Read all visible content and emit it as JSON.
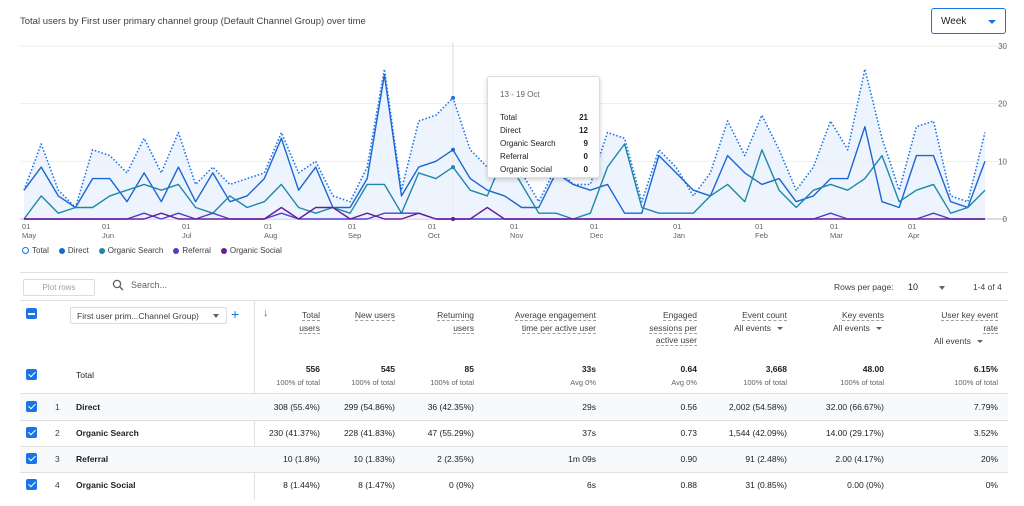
{
  "chart": {
    "title": "Total users by First user primary channel group (Default Channel Group) over time",
    "period_select": "Week"
  },
  "chart_data": {
    "type": "line",
    "x_tick_labels": [
      {
        "day": "01",
        "month": "May"
      },
      {
        "day": "01",
        "month": "Jun"
      },
      {
        "day": "01",
        "month": "Jul"
      },
      {
        "day": "01",
        "month": "Aug"
      },
      {
        "day": "01",
        "month": "Sep"
      },
      {
        "day": "01",
        "month": "Oct"
      },
      {
        "day": "01",
        "month": "Nov"
      },
      {
        "day": "01",
        "month": "Dec"
      },
      {
        "day": "01",
        "month": "Jan"
      },
      {
        "day": "01",
        "month": "Feb"
      },
      {
        "day": "01",
        "month": "Mar"
      },
      {
        "day": "01",
        "month": "Apr"
      }
    ],
    "y_ticks": [
      0,
      10,
      20,
      30
    ],
    "ylim": [
      0,
      30
    ],
    "series": [
      {
        "name": "Total",
        "color": "#1a73e8",
        "style": "dotted-area",
        "values": [
          5,
          13,
          5,
          2,
          12,
          11,
          8,
          14,
          8,
          15,
          6,
          9,
          6,
          7,
          8,
          15,
          8,
          10,
          4,
          3,
          9,
          26,
          5,
          17,
          18,
          21,
          12,
          9,
          15,
          8,
          3,
          9,
          6,
          6,
          15,
          14,
          3,
          12,
          9,
          4,
          8,
          17,
          11,
          18,
          12,
          5,
          9,
          17,
          12,
          26,
          14,
          5,
          16,
          17,
          4,
          3,
          15
        ]
      },
      {
        "name": "Direct",
        "color": "#1967d2",
        "style": "line",
        "values": [
          5,
          9,
          4,
          2,
          7,
          7,
          3,
          8,
          3,
          9,
          3,
          8,
          3,
          4,
          7,
          14,
          5,
          9,
          2,
          2,
          7,
          25,
          4,
          9,
          10,
          12,
          7,
          5,
          4,
          2,
          2,
          8,
          6,
          5,
          6,
          1,
          1,
          11,
          8,
          5,
          4,
          11,
          8,
          6,
          7,
          3,
          4,
          7,
          7,
          16,
          3,
          2,
          11,
          11,
          3,
          2,
          10
        ]
      },
      {
        "name": "Organic Search",
        "color": "#1e88a8",
        "style": "line",
        "values": [
          0,
          4,
          1,
          2,
          2,
          4,
          5,
          6,
          5,
          6,
          2,
          1,
          4,
          2,
          3,
          6,
          2,
          1,
          2,
          1,
          6,
          6,
          1,
          8,
          7,
          9,
          5,
          4,
          11,
          6,
          1,
          1,
          0,
          1,
          9,
          13,
          2,
          1,
          1,
          1,
          4,
          6,
          3,
          12,
          5,
          2,
          5,
          6,
          5,
          7,
          11,
          3,
          5,
          6,
          1,
          2,
          5
        ]
      },
      {
        "name": "Referral",
        "color": "#4b3fd0",
        "style": "line",
        "values": [
          0,
          0,
          0,
          0,
          0,
          0,
          0,
          1,
          0,
          1,
          0,
          1,
          0,
          0,
          0,
          1,
          0,
          0,
          0,
          0,
          0,
          1,
          1,
          1,
          0,
          0,
          0,
          0,
          0,
          0,
          0,
          0,
          0,
          0,
          0,
          0,
          0,
          0,
          0,
          0,
          0,
          0,
          0,
          0,
          0,
          0,
          0,
          1,
          0,
          0,
          0,
          0,
          0,
          1,
          0,
          0,
          0
        ]
      },
      {
        "name": "Organic Social",
        "color": "#6a1b9a",
        "style": "line",
        "values": [
          0,
          0,
          0,
          0,
          0,
          0,
          0,
          0,
          1,
          0,
          0,
          0,
          0,
          0,
          0,
          2,
          0,
          2,
          2,
          0,
          1,
          0,
          0,
          1,
          0,
          0,
          0,
          2,
          0,
          0,
          0,
          0,
          0,
          0,
          0,
          0,
          0,
          0,
          0,
          0,
          0,
          0,
          0,
          0,
          0,
          0,
          0,
          0,
          0,
          0,
          0,
          0,
          0,
          0,
          0,
          0,
          0
        ]
      }
    ]
  },
  "legend": [
    {
      "label": "Total",
      "color": "#ffffff",
      "border": "#1a73e8"
    },
    {
      "label": "Direct",
      "color": "#1967d2"
    },
    {
      "label": "Organic Search",
      "color": "#1e88a8"
    },
    {
      "label": "Referral",
      "color": "#4b3fd0"
    },
    {
      "label": "Organic Social",
      "color": "#6a1b9a"
    }
  ],
  "tooltip": {
    "date": "13 - 19 Oct",
    "rows": [
      {
        "label": "Total",
        "value": "21"
      },
      {
        "label": "Direct",
        "value": "12"
      },
      {
        "label": "Organic Search",
        "value": "9"
      },
      {
        "label": "Referral",
        "value": "0"
      },
      {
        "label": "Organic Social",
        "value": "0"
      }
    ]
  },
  "toolbar": {
    "plot_rows": "Plot rows",
    "search_placeholder": "Search...",
    "rows_per_page_label": "Rows per page:",
    "rows_per_page_value": "10",
    "range": "1-4 of 4"
  },
  "table": {
    "dimension_select": "First user prim...Channel Group)",
    "columns": [
      {
        "lines": [
          "Total",
          "users"
        ],
        "sub": ""
      },
      {
        "lines": [
          "New users"
        ],
        "sub": ""
      },
      {
        "lines": [
          "Returning",
          "users"
        ],
        "sub": ""
      },
      {
        "lines": [
          "Average engagement",
          "time per active user"
        ],
        "sub": ""
      },
      {
        "lines": [
          "Engaged",
          "sessions per",
          "active user"
        ],
        "sub": ""
      },
      {
        "lines": [
          "Event count"
        ],
        "sub": "All events"
      },
      {
        "lines": [
          "Key events"
        ],
        "sub": "All events"
      },
      {
        "lines": [
          "User key event",
          "rate"
        ],
        "sub": "All events"
      }
    ],
    "total": {
      "label": "Total",
      "values": [
        "556",
        "545",
        "85",
        "33s",
        "0.64",
        "3,668",
        "48.00",
        "6.15%"
      ],
      "subs": [
        "100% of total",
        "100% of total",
        "100% of total",
        "Avg 0%",
        "Avg 0%",
        "100% of total",
        "100% of total",
        "100% of total"
      ]
    },
    "rows": [
      {
        "num": "1",
        "label": "Direct",
        "values": [
          "308 (55.4%)",
          "299 (54.86%)",
          "36 (42.35%)",
          "29s",
          "0.56",
          "2,002 (54.58%)",
          "32.00 (66.67%)",
          "7.79%"
        ]
      },
      {
        "num": "2",
        "label": "Organic Search",
        "values": [
          "230 (41.37%)",
          "228 (41.83%)",
          "47 (55.29%)",
          "37s",
          "0.73",
          "1,544 (42.09%)",
          "14.00 (29.17%)",
          "3.52%"
        ]
      },
      {
        "num": "3",
        "label": "Referral",
        "values": [
          "10 (1.8%)",
          "10 (1.83%)",
          "2 (2.35%)",
          "1m 09s",
          "0.90",
          "91 (2.48%)",
          "2.00 (4.17%)",
          "20%"
        ]
      },
      {
        "num": "4",
        "label": "Organic Social",
        "values": [
          "8 (1.44%)",
          "8 (1.47%)",
          "0 (0%)",
          "6s",
          "0.88",
          "31 (0.85%)",
          "0.00 (0%)",
          "0%"
        ]
      }
    ]
  }
}
